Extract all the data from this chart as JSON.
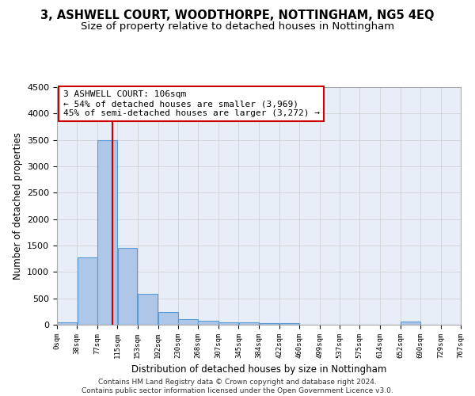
{
  "title": "3, ASHWELL COURT, WOODTHORPE, NOTTINGHAM, NG5 4EQ",
  "subtitle": "Size of property relative to detached houses in Nottingham",
  "xlabel": "Distribution of detached houses by size in Nottingham",
  "ylabel": "Number of detached properties",
  "footer_line1": "Contains HM Land Registry data © Crown copyright and database right 2024.",
  "footer_line2": "Contains public sector information licensed under the Open Government Licence v3.0.",
  "bin_edges": [
    0,
    38,
    77,
    115,
    153,
    192,
    230,
    268,
    307,
    345,
    384,
    422,
    460,
    499,
    537,
    575,
    614,
    652,
    690,
    729,
    767
  ],
  "bar_heights": [
    40,
    1280,
    3500,
    1460,
    580,
    240,
    110,
    80,
    50,
    50,
    30,
    30,
    0,
    0,
    0,
    0,
    0,
    60,
    0,
    0
  ],
  "bar_color": "#aec6e8",
  "bar_edgecolor": "#5b9bd5",
  "bar_linewidth": 0.8,
  "vline_x": 106,
  "vline_color": "#cc0000",
  "vline_linewidth": 1.5,
  "annotation_text": "3 ASHWELL COURT: 106sqm\n← 54% of detached houses are smaller (3,969)\n45% of semi-detached houses are larger (3,272) →",
  "annotation_box_edgecolor": "#cc0000",
  "annotation_box_facecolor": "#ffffff",
  "ylim": [
    0,
    4500
  ],
  "xlim": [
    0,
    767
  ],
  "yticks": [
    0,
    500,
    1000,
    1500,
    2000,
    2500,
    3000,
    3500,
    4000,
    4500
  ],
  "grid_color": "#cccccc",
  "grid_alpha": 0.7,
  "background_color": "#e8eef8",
  "title_fontsize": 10.5,
  "subtitle_fontsize": 9.5,
  "xlabel_fontsize": 8.5,
  "ylabel_fontsize": 8.5,
  "annotation_fontsize": 8,
  "xtick_fontsize": 6.5,
  "ytick_fontsize": 8
}
